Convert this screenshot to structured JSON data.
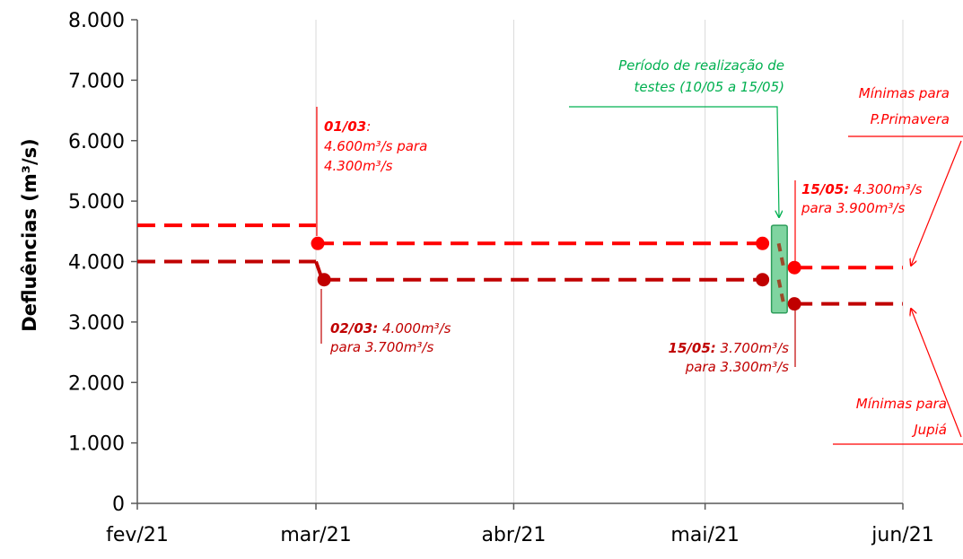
{
  "chart_data": {
    "type": "line",
    "ylabel": "Defluências (m³/s)",
    "xlabel": "",
    "title": "",
    "x_ticks": [
      "fev/21",
      "mar/21",
      "abr/21",
      "mai/21",
      "jun/21"
    ],
    "x_tick_dates": [
      "2021-02-01",
      "2021-03-01",
      "2021-04-01",
      "2021-05-01",
      "2021-06-01"
    ],
    "y_ticks": [
      "0",
      "1.000",
      "2.000",
      "3.000",
      "4.000",
      "5.000",
      "6.000",
      "7.000",
      "8.000"
    ],
    "ylim": [
      0,
      8000
    ],
    "xlim": [
      "2021-02-01",
      "2021-06-01"
    ],
    "grid": "vertical",
    "series": [
      {
        "key": "pp",
        "color": "#ff0000",
        "segments": [
          {
            "x": [
              "2021-02-01",
              "2021-03-01"
            ],
            "y": [
              4600,
              4600
            ]
          },
          {
            "x": [
              "2021-03-01",
              "2021-05-10"
            ],
            "y": [
              4300,
              4300
            ]
          },
          {
            "x": [
              "2021-05-10",
              "2021-05-15"
            ],
            "y": [
              4300,
              3900
            ]
          },
          {
            "x": [
              "2021-05-15",
              "2021-06-01"
            ],
            "y": [
              3900,
              3900
            ]
          }
        ],
        "points": [
          {
            "x": "2021-03-01",
            "y": 4300
          },
          {
            "x": "2021-05-10",
            "y": 4300
          },
          {
            "x": "2021-05-15",
            "y": 3900
          }
        ]
      },
      {
        "key": "jupia",
        "color": "#c00000",
        "segments": [
          {
            "x": [
              "2021-02-01",
              "2021-03-01"
            ],
            "y": [
              4000,
              4000
            ]
          },
          {
            "x": [
              "2021-03-01",
              "2021-03-02"
            ],
            "y": [
              4000,
              3700
            ]
          },
          {
            "x": [
              "2021-03-02",
              "2021-05-10"
            ],
            "y": [
              3700,
              3700
            ]
          },
          {
            "x": [
              "2021-05-10",
              "2021-05-15"
            ],
            "y": [
              3700,
              3300
            ]
          },
          {
            "x": [
              "2021-05-15",
              "2021-06-01"
            ],
            "y": [
              3300,
              3300
            ]
          }
        ],
        "points": [
          {
            "x": "2021-03-02",
            "y": 3700
          },
          {
            "x": "2021-05-10",
            "y": 3700
          },
          {
            "x": "2021-05-15",
            "y": 3300
          }
        ]
      }
    ],
    "test_period": {
      "start": "2021-05-10",
      "end": "2021-05-15",
      "y_range": [
        3150,
        4600
      ],
      "color": "#7fd4a0",
      "border": "#2e9e5b"
    },
    "annotations": {
      "ann_0103": {
        "bold": "01/03",
        "tail": ":",
        "lines": [
          "4.600m³/s para",
          "4.300m³/s"
        ],
        "color": "#ff0000"
      },
      "ann_0203": {
        "bold": "02/03:",
        "tail": " 4.000m³/s",
        "lines": [
          "para 3.700m³/s"
        ],
        "color": "#c00000"
      },
      "ann_1505_pp": {
        "bold": "15/05:",
        "tail": " 4.300m³/s",
        "lines": [
          "para 3.900m³/s"
        ],
        "color": "#ff0000"
      },
      "ann_1505_j": {
        "bold": "15/05:",
        "tail": " 3.700m³/s",
        "lines": [
          "para 3.300m³/s"
        ],
        "color": "#c00000"
      },
      "ann_periodo": {
        "lines": [
          "Período de realização de",
          "testes (10/05 a 15/05)"
        ],
        "color": "#00b050"
      },
      "ann_min_pp": {
        "lines": [
          "Mínimas para",
          "P.Primavera"
        ],
        "color": "#ff0000"
      },
      "ann_min_j": {
        "lines": [
          "Mínimas para",
          "Jupiá"
        ],
        "color": "#ff0000"
      }
    }
  }
}
